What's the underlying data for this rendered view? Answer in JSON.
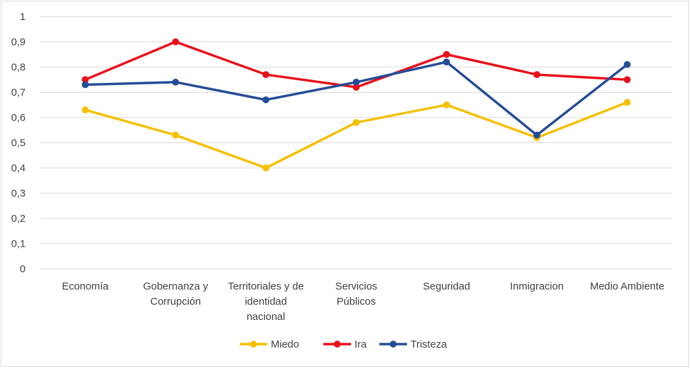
{
  "chart_data": {
    "type": "line",
    "title": "",
    "xlabel": "",
    "ylabel": "",
    "ylim": [
      0,
      1
    ],
    "yticks": [
      "0",
      "0,1",
      "0,2",
      "0,3",
      "0,4",
      "0,5",
      "0,6",
      "0,7",
      "0,8",
      "0,9",
      "1"
    ],
    "grid": true,
    "legend_position": "bottom",
    "categories": [
      [
        "Economía"
      ],
      [
        "Gobernanza y",
        "Corrupción"
      ],
      [
        "Territoriales y de",
        "identidad",
        "nacional"
      ],
      [
        "Servicios",
        "Públicos"
      ],
      [
        "Seguridad"
      ],
      [
        "Inmigracion"
      ],
      [
        "Medio Ambiente"
      ]
    ],
    "series": [
      {
        "name": "Miedo",
        "color": "#f5c000",
        "values": [
          0.63,
          0.53,
          0.4,
          0.58,
          0.65,
          0.52,
          0.66
        ]
      },
      {
        "name": "Ira",
        "color": "#e8101a",
        "values": [
          0.75,
          0.9,
          0.77,
          0.72,
          0.85,
          0.77,
          0.75
        ]
      },
      {
        "name": "Tristeza",
        "color": "#254c96",
        "values": [
          0.73,
          0.74,
          0.67,
          0.74,
          0.82,
          0.53,
          0.81
        ]
      }
    ]
  }
}
